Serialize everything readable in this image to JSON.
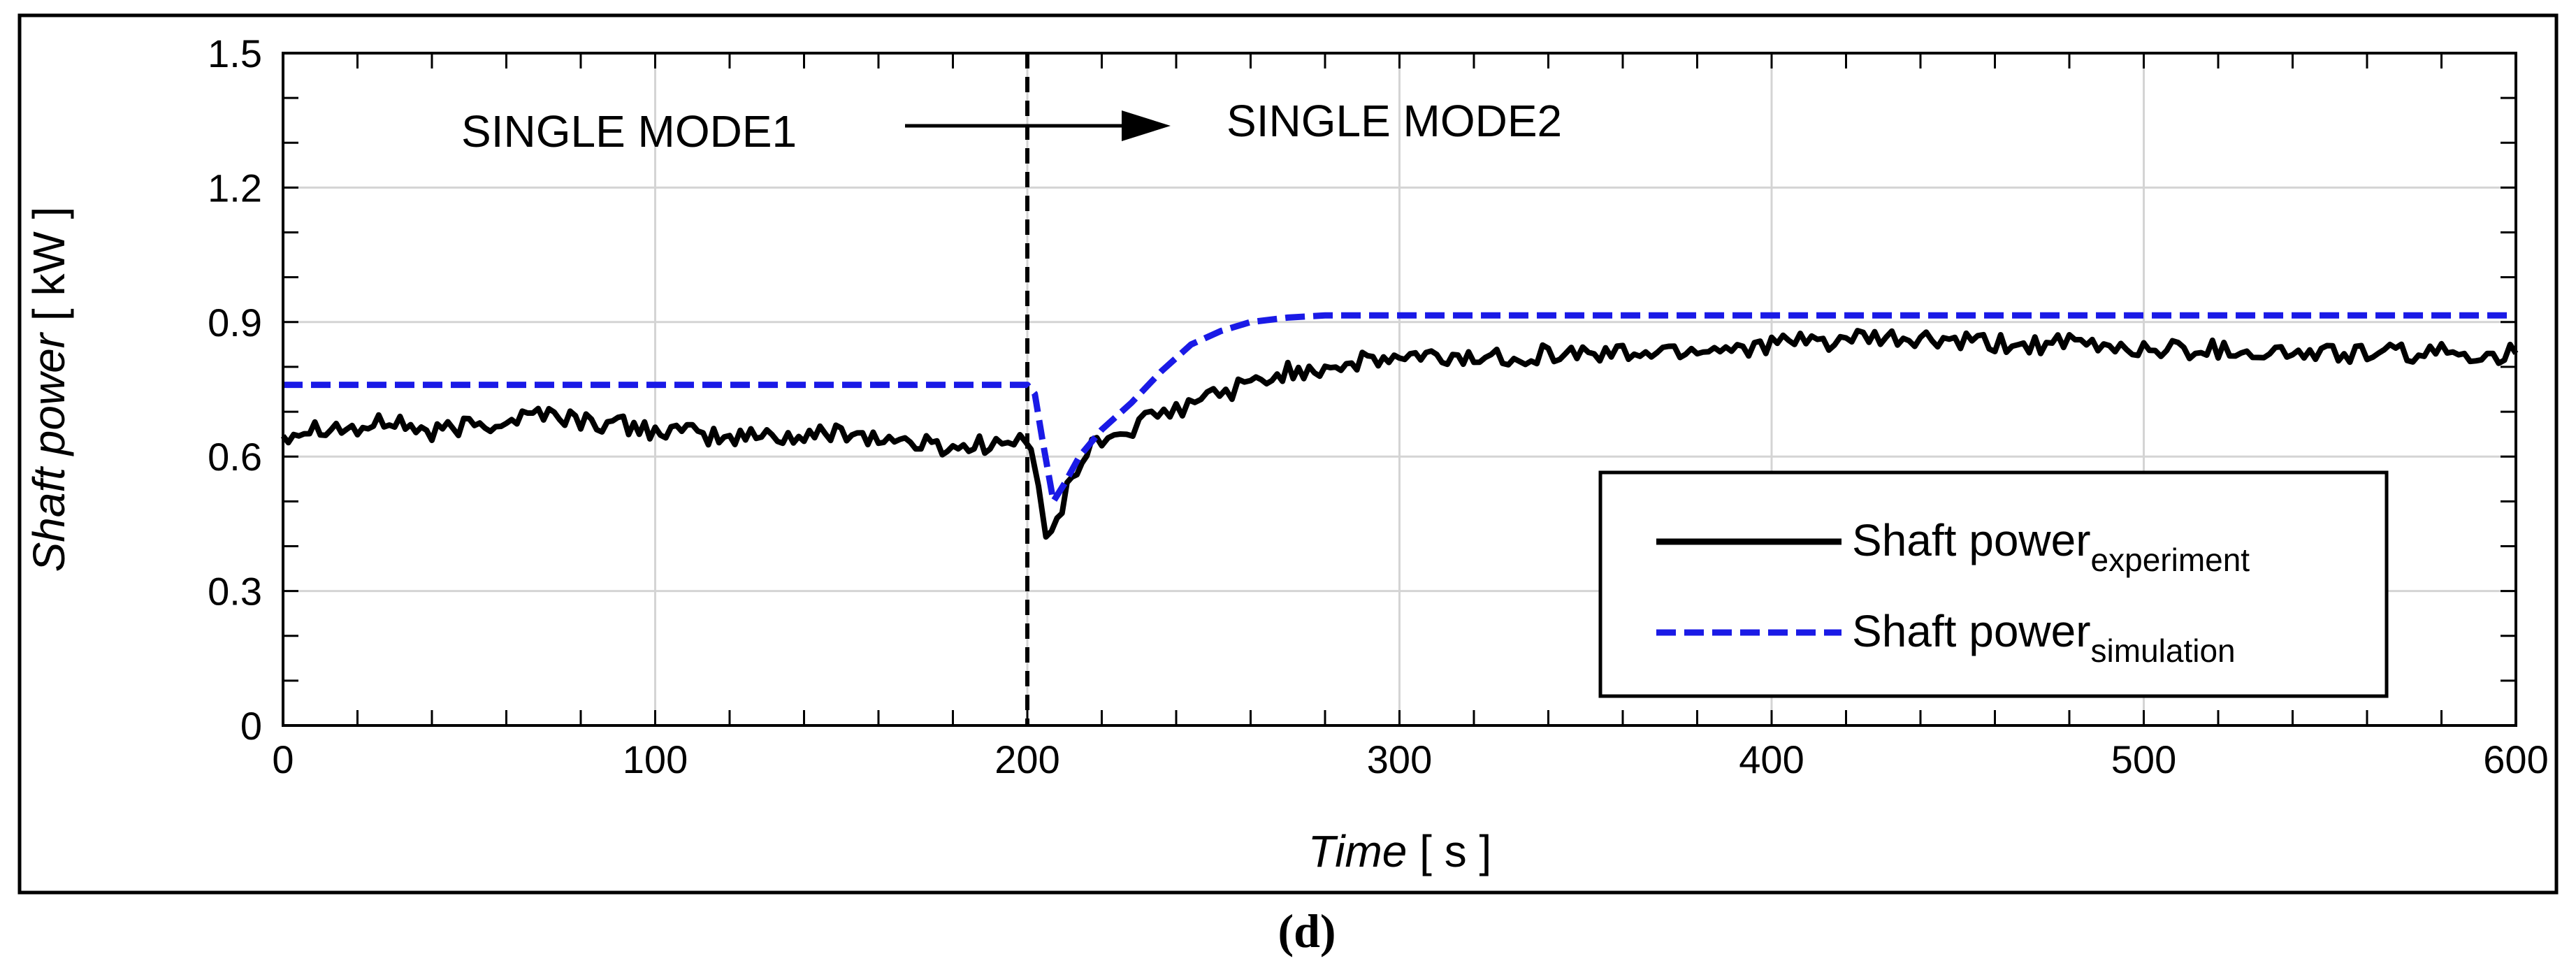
{
  "chart_data": {
    "type": "line",
    "xlabel": {
      "italic": "Time",
      "unit": "[ s ]"
    },
    "ylabel": {
      "italic": "Shaft power",
      "unit": "[ kW ]"
    },
    "xlim": [
      0,
      600
    ],
    "ylim": [
      0,
      1.5
    ],
    "x_ticks": [
      0,
      100,
      200,
      300,
      400,
      500,
      600
    ],
    "y_ticks": [
      0,
      0.3,
      0.6,
      0.9,
      1.2,
      1.5
    ],
    "x_tick_labels": [
      "0",
      "100",
      "200",
      "300",
      "400",
      "500",
      "600"
    ],
    "y_tick_labels": [
      "0",
      "0.3",
      "0.6",
      "0.9",
      "1.2",
      "1.5"
    ],
    "grid": true,
    "legend_position": "lower-right",
    "annotations": {
      "mode_before": "SINGLE MODE1",
      "mode_after": "SINGLE MODE2",
      "switch_time": 200
    },
    "series": [
      {
        "name": "Shaft power",
        "subscript": "experiment",
        "color": "#000000",
        "style": "solid",
        "x": [
          0,
          10,
          20,
          30,
          40,
          50,
          60,
          70,
          80,
          90,
          100,
          110,
          120,
          130,
          140,
          150,
          160,
          170,
          180,
          190,
          198,
          201,
          203,
          205,
          208,
          212,
          216,
          220,
          225,
          230,
          235,
          240,
          245,
          250,
          255,
          260,
          270,
          280,
          290,
          300,
          310,
          320,
          340,
          360,
          380,
          400,
          420,
          440,
          460,
          480,
          500,
          520,
          540,
          560,
          580,
          600
        ],
        "y": [
          0.65,
          0.67,
          0.66,
          0.68,
          0.65,
          0.67,
          0.68,
          0.7,
          0.68,
          0.67,
          0.66,
          0.65,
          0.64,
          0.65,
          0.64,
          0.66,
          0.64,
          0.63,
          0.62,
          0.63,
          0.63,
          0.62,
          0.52,
          0.44,
          0.46,
          0.55,
          0.61,
          0.64,
          0.65,
          0.67,
          0.69,
          0.7,
          0.72,
          0.74,
          0.75,
          0.76,
          0.79,
          0.8,
          0.81,
          0.82,
          0.82,
          0.82,
          0.83,
          0.83,
          0.84,
          0.85,
          0.86,
          0.86,
          0.85,
          0.85,
          0.84,
          0.84,
          0.83,
          0.83,
          0.83,
          0.83
        ]
      },
      {
        "name": "Shaft power",
        "subscript": "simulation",
        "color": "#1a1ae6",
        "style": "dashed",
        "x": [
          0,
          100,
          200,
          202,
          204,
          207,
          210,
          214,
          220,
          228,
          236,
          244,
          252,
          260,
          270,
          280,
          300,
          400,
          500,
          600
        ],
        "y": [
          0.76,
          0.76,
          0.76,
          0.74,
          0.64,
          0.5,
          0.54,
          0.6,
          0.66,
          0.72,
          0.79,
          0.85,
          0.88,
          0.9,
          0.91,
          0.915,
          0.915,
          0.915,
          0.915,
          0.915
        ]
      }
    ]
  },
  "caption": "(d)"
}
